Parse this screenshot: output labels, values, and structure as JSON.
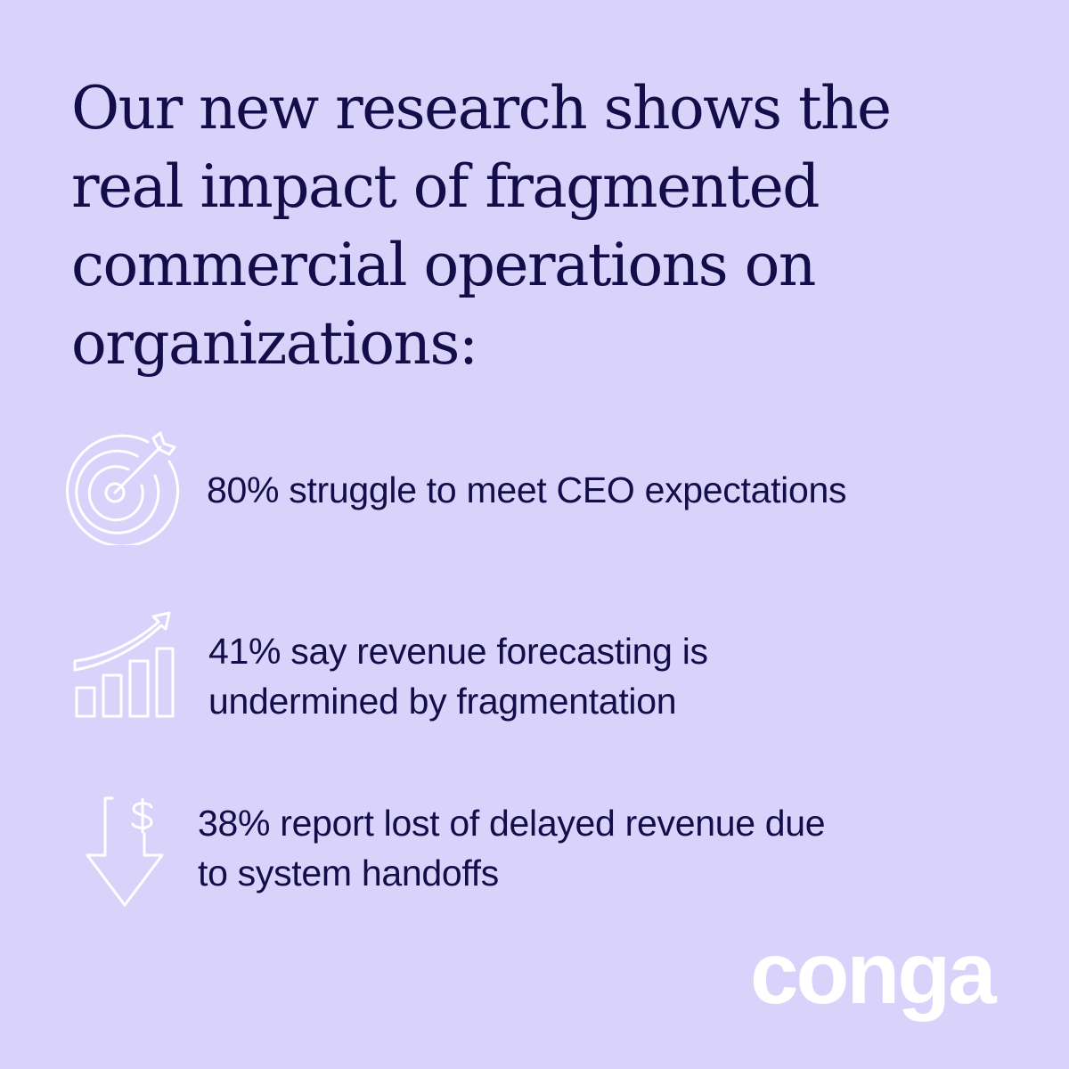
{
  "headline": {
    "lines": [
      "Our new research shows the",
      "real impact of fragmented",
      "commercial operations on",
      "organizations:"
    ]
  },
  "stats": [
    {
      "icon": "target-arrow-icon",
      "lines": [
        "80% struggle to meet CEO expectations"
      ]
    },
    {
      "icon": "growth-bar-chart-icon",
      "lines": [
        "41% say revenue forecasting is",
        "undermined by fragmentation"
      ]
    },
    {
      "icon": "dollar-down-arrow-icon",
      "lines": [
        "38% report lost of delayed revenue due",
        "to system handoffs"
      ]
    }
  ],
  "brand": {
    "logo_text": "conga"
  },
  "colors": {
    "background": "#d9d3fb",
    "text": "#130d4a",
    "icon_stroke": "#ffffff",
    "logo": "#ffffff"
  }
}
